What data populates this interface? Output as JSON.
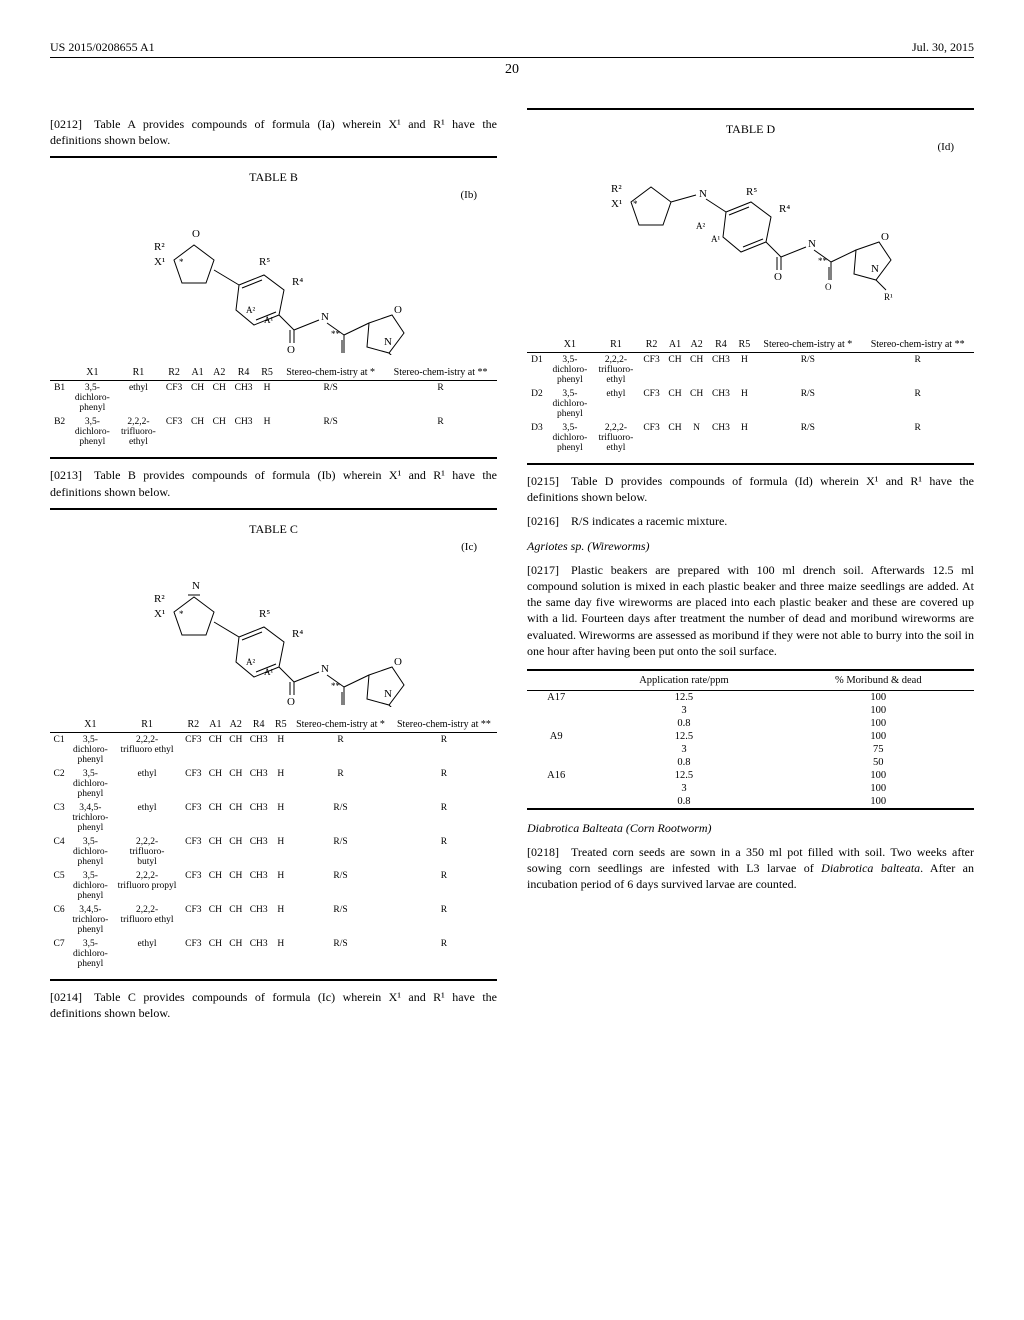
{
  "header": {
    "pub_number": "US 2015/0208655 A1",
    "pub_date": "Jul. 30, 2015"
  },
  "page_number": "20",
  "col1": {
    "para0212": "[0212] Table A provides compounds of formula (Ia) wherein X¹ and R¹ have the definitions shown below.",
    "tableB": {
      "title": "TABLE B",
      "formula": "(Ib)",
      "headers": [
        "",
        "X1",
        "R1",
        "R2",
        "A1",
        "A2",
        "R4",
        "R5",
        "Stereo-chem-istry at *",
        "Stereo-chem-istry at **"
      ],
      "rows": [
        [
          "B1",
          "3,5-dichloro-phenyl",
          "ethyl",
          "CF3",
          "CH",
          "CH",
          "CH3",
          "H",
          "R/S",
          "R"
        ],
        [
          "B2",
          "3,5-dichloro-phenyl",
          "2,2,2-trifluoro-ethyl",
          "CF3",
          "CH",
          "CH",
          "CH3",
          "H",
          "R/S",
          "R"
        ]
      ]
    },
    "para0213": "[0213] Table B provides compounds of formula (Ib) wherein X¹ and R¹ have the definitions shown below.",
    "tableC": {
      "title": "TABLE C",
      "formula": "(Ic)",
      "headers": [
        "",
        "X1",
        "R1",
        "R2",
        "A1",
        "A2",
        "R4",
        "R5",
        "Stereo-chem-istry at *",
        "Stereo-chem-istry at **"
      ],
      "rows": [
        [
          "C1",
          "3,5-dichloro-phenyl",
          "2,2,2-trifluoro ethyl",
          "CF3",
          "CH",
          "CH",
          "CH3",
          "H",
          "R",
          "R"
        ],
        [
          "C2",
          "3,5-dichloro-phenyl",
          "ethyl",
          "CF3",
          "CH",
          "CH",
          "CH3",
          "H",
          "R",
          "R"
        ],
        [
          "C3",
          "3,4,5-trichloro-phenyl",
          "ethyl",
          "CF3",
          "CH",
          "CH",
          "CH3",
          "H",
          "R/S",
          "R"
        ],
        [
          "C4",
          "3,5-dichloro-phenyl",
          "2,2,2-trifluoro-butyl",
          "CF3",
          "CH",
          "CH",
          "CH3",
          "H",
          "R/S",
          "R"
        ],
        [
          "C5",
          "3,5-dichloro-phenyl",
          "2,2,2-trifluoro propyl",
          "CF3",
          "CH",
          "CH",
          "CH3",
          "H",
          "R/S",
          "R"
        ],
        [
          "C6",
          "3,4,5-trichloro-phenyl",
          "2,2,2-trifluoro ethyl",
          "CF3",
          "CH",
          "CH",
          "CH3",
          "H",
          "R/S",
          "R"
        ],
        [
          "C7",
          "3,5-dichloro-phenyl",
          "ethyl",
          "CF3",
          "CH",
          "CH",
          "CH3",
          "H",
          "R/S",
          "R"
        ]
      ]
    },
    "para0214": "[0214] Table C provides compounds of formula (Ic) wherein X¹ and R¹ have the definitions shown below."
  },
  "col2": {
    "tableD": {
      "title": "TABLE D",
      "formula": "(Id)",
      "headers": [
        "",
        "X1",
        "R1",
        "R2",
        "A1",
        "A2",
        "R4",
        "R5",
        "Stereo-chem-istry at *",
        "Stereo-chem-istry at **"
      ],
      "rows": [
        [
          "D1",
          "3,5-dichloro-phenyl",
          "2,2,2-trifluoro-ethyl",
          "CF3",
          "CH",
          "CH",
          "CH3",
          "H",
          "R/S",
          "R"
        ],
        [
          "D2",
          "3,5-dichloro-phenyl",
          "ethyl",
          "CF3",
          "CH",
          "CH",
          "CH3",
          "H",
          "R/S",
          "R"
        ],
        [
          "D3",
          "3,5-dichloro-phenyl",
          "2,2,2-trifluoro-ethyl",
          "CF3",
          "CH",
          "N",
          "CH3",
          "H",
          "R/S",
          "R"
        ]
      ]
    },
    "para0215": "[0215] Table D provides compounds of formula (Id) wherein X¹ and R¹ have the definitions shown below.",
    "para0216": "[0216] R/S indicates a racemic mixture.",
    "section_agriotes": "Agriotes sp. (Wireworms)",
    "para0217": "[0217] Plastic beakers are prepared with 100 ml drench soil. Afterwards 12.5 ml compound solution is mixed in each plastic beaker and three maize seedlings are added. At the same day five wireworms are placed into each plastic beaker and these are covered up with a lid. Fourteen days after treatment the number of dead and moribund wireworms are evaluated. Wireworms are assessed as moribund if they were not able to burry into the soil in one hour after having been put onto the soil surface.",
    "results": {
      "headers": [
        "",
        "Application rate/ppm",
        "% Moribund & dead"
      ],
      "rows": [
        [
          "A17",
          "12.5",
          "100"
        ],
        [
          "",
          "3",
          "100"
        ],
        [
          "",
          "0.8",
          "100"
        ],
        [
          "A9",
          "12.5",
          "100"
        ],
        [
          "",
          "3",
          "75"
        ],
        [
          "",
          "0.8",
          "50"
        ],
        [
          "A16",
          "12.5",
          "100"
        ],
        [
          "",
          "3",
          "100"
        ],
        [
          "",
          "0.8",
          "100"
        ]
      ]
    },
    "section_diabrotica": "Diabrotica Balteata (Corn Rootworm)",
    "para0218": "[0218] Treated corn seeds are sown in a 350 ml pot filled with soil. Two weeks after sowing corn seedlings are infested with L3 larvae of Diabrotica balteata. After an incubation period of 6 days survived larvae are counted."
  }
}
